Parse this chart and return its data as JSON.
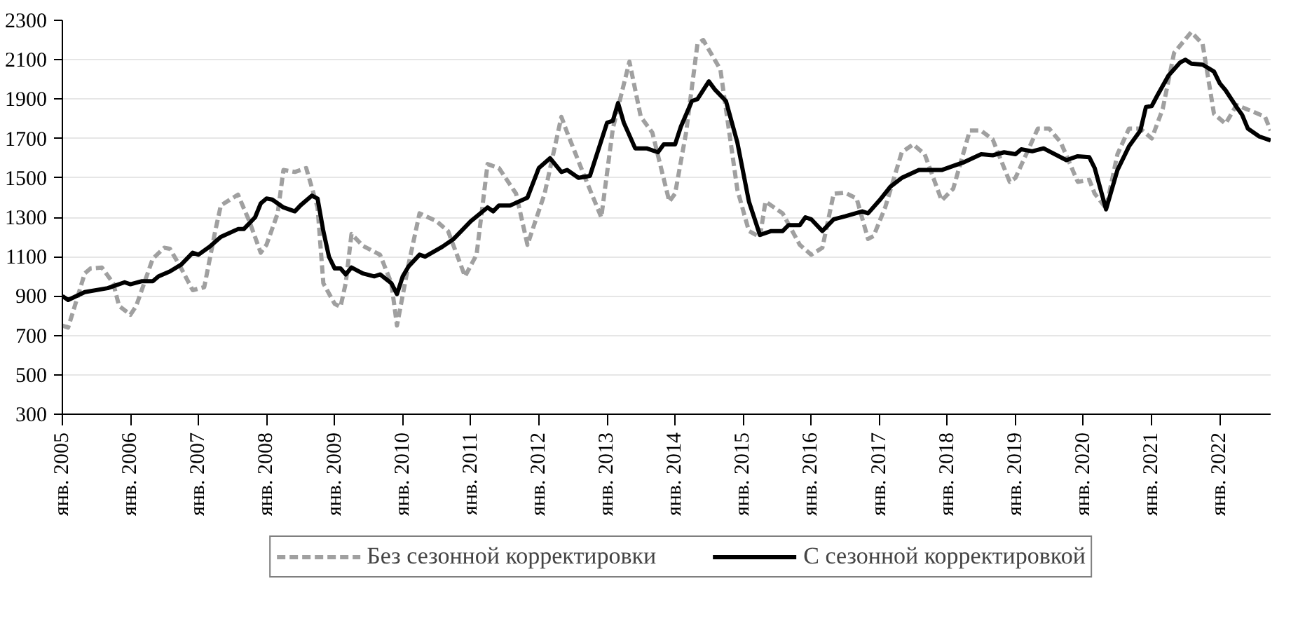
{
  "chart_data": {
    "type": "line",
    "xlim": [
      "2005-01",
      "2022-10"
    ],
    "xticks": [
      {
        "value": "2005-01",
        "label": "янв. 2005"
      },
      {
        "value": "2006-01",
        "label": "янв. 2006"
      },
      {
        "value": "2007-01",
        "label": "янв. 2007"
      },
      {
        "value": "2008-01",
        "label": "янв. 2008"
      },
      {
        "value": "2009-01",
        "label": "янв. 2009"
      },
      {
        "value": "2010-01",
        "label": "янв. 2010"
      },
      {
        "value": "2011-01",
        "label": "янв. 2011"
      },
      {
        "value": "2012-01",
        "label": "янв. 2012"
      },
      {
        "value": "2013-01",
        "label": "янв. 2013"
      },
      {
        "value": "2014-01",
        "label": "янв. 2014"
      },
      {
        "value": "2015-01",
        "label": "янв. 2015"
      },
      {
        "value": "2016-01",
        "label": "янв. 2016"
      },
      {
        "value": "2017-01",
        "label": "янв. 2017"
      },
      {
        "value": "2018-01",
        "label": "янв. 2018"
      },
      {
        "value": "2019-01",
        "label": "янв. 2019"
      },
      {
        "value": "2020-01",
        "label": "янв. 2020"
      },
      {
        "value": "2021-01",
        "label": "янв. 2021"
      },
      {
        "value": "2022-01",
        "label": "янв. 2022"
      }
    ],
    "ylim": [
      300,
      2300
    ],
    "yticks": [
      300,
      500,
      700,
      900,
      1100,
      1300,
      1500,
      1700,
      1900,
      2100,
      2300
    ],
    "grid": "y",
    "legend": "bottom",
    "series": [
      {
        "name": "Без сезонной корректировки",
        "color": "#a0a0a0",
        "line_style": "dashed",
        "x": [
          "2005-01",
          "2005-02",
          "2005-05",
          "2005-06",
          "2005-08",
          "2005-10",
          "2005-11",
          "2006-01",
          "2006-02",
          "2006-05",
          "2006-07",
          "2006-08",
          "2006-10",
          "2006-12",
          "2007-02",
          "2007-04",
          "2007-05",
          "2007-08",
          "2007-10",
          "2007-12",
          "2008-01",
          "2008-03",
          "2008-04",
          "2008-06",
          "2008-08",
          "2008-10",
          "2008-11",
          "2009-01",
          "2009-02",
          "2009-03",
          "2009-04",
          "2009-06",
          "2009-09",
          "2009-11",
          "2009-12",
          "2010-02",
          "2010-04",
          "2010-07",
          "2010-09",
          "2010-12",
          "2011-02",
          "2011-04",
          "2011-06",
          "2011-09",
          "2011-11",
          "2012-02",
          "2012-05",
          "2012-06",
          "2012-09",
          "2012-12",
          "2013-02",
          "2013-05",
          "2013-07",
          "2013-09",
          "2013-12",
          "2014-01",
          "2014-03",
          "2014-05",
          "2014-06",
          "2014-09",
          "2014-12",
          "2015-02",
          "2015-04",
          "2015-05",
          "2015-07",
          "2015-08",
          "2015-11",
          "2016-01",
          "2016-03",
          "2016-05",
          "2016-07",
          "2016-09",
          "2016-11",
          "2016-12",
          "2017-02",
          "2017-05",
          "2017-07",
          "2017-09",
          "2017-12",
          "2018-02",
          "2018-05",
          "2018-07",
          "2018-09",
          "2018-12",
          "2019-01",
          "2019-05",
          "2019-07",
          "2019-09",
          "2019-12",
          "2020-02",
          "2020-03",
          "2020-05",
          "2020-07",
          "2020-09",
          "2020-11",
          "2021-01",
          "2021-03",
          "2021-05",
          "2021-08",
          "2021-10",
          "2021-12",
          "2022-02",
          "2022-04",
          "2022-07",
          "2022-09",
          "2022-10"
        ],
        "values": [
          750,
          740,
          1015,
          1040,
          1045,
          965,
          850,
          805,
          850,
          1090,
          1145,
          1140,
          1040,
          930,
          945,
          1230,
          1360,
          1415,
          1280,
          1120,
          1160,
          1320,
          1540,
          1530,
          1550,
          1350,
          965,
          860,
          845,
          965,
          1215,
          1155,
          1110,
          965,
          750,
          1060,
          1320,
          1280,
          1230,
          1000,
          1110,
          1570,
          1550,
          1420,
          1160,
          1420,
          1810,
          1730,
          1510,
          1300,
          1750,
          2090,
          1810,
          1730,
          1380,
          1420,
          1730,
          2180,
          2200,
          2050,
          1440,
          1230,
          1200,
          1380,
          1340,
          1320,
          1160,
          1110,
          1145,
          1420,
          1425,
          1395,
          1190,
          1205,
          1350,
          1630,
          1670,
          1620,
          1385,
          1445,
          1740,
          1740,
          1695,
          1480,
          1500,
          1750,
          1750,
          1680,
          1480,
          1490,
          1420,
          1345,
          1620,
          1750,
          1750,
          1700,
          1850,
          2135,
          2240,
          2180,
          1825,
          1775,
          1870,
          1835,
          1810,
          1740
        ]
      },
      {
        "name": "С сезонной корректировкой",
        "color": "#000000",
        "line_style": "solid",
        "x": [
          "2005-01",
          "2005-02",
          "2005-05",
          "2005-09",
          "2005-12",
          "2006-01",
          "2006-03",
          "2006-05",
          "2006-06",
          "2006-08",
          "2006-10",
          "2006-12",
          "2007-01",
          "2007-03",
          "2007-05",
          "2007-08",
          "2007-09",
          "2007-11",
          "2007-12",
          "2008-01",
          "2008-02",
          "2008-04",
          "2008-06",
          "2008-07",
          "2008-09",
          "2008-10",
          "2008-11",
          "2008-12",
          "2009-01",
          "2009-02",
          "2009-03",
          "2009-04",
          "2009-06",
          "2009-08",
          "2009-09",
          "2009-11",
          "2009-12",
          "2010-01",
          "2010-02",
          "2010-04",
          "2010-05",
          "2010-08",
          "2010-10",
          "2011-01",
          "2011-04",
          "2011-05",
          "2011-06",
          "2011-08",
          "2011-11",
          "2012-01",
          "2012-03",
          "2012-05",
          "2012-06",
          "2012-08",
          "2012-10",
          "2013-01",
          "2013-02",
          "2013-03",
          "2013-04",
          "2013-06",
          "2013-08",
          "2013-10",
          "2013-11",
          "2014-01",
          "2014-02",
          "2014-04",
          "2014-05",
          "2014-07",
          "2014-08",
          "2014-10",
          "2014-12",
          "2015-02",
          "2015-04",
          "2015-06",
          "2015-08",
          "2015-09",
          "2015-11",
          "2015-12",
          "2016-01",
          "2016-03",
          "2016-05",
          "2016-07",
          "2016-10",
          "2016-11",
          "2017-01",
          "2017-03",
          "2017-05",
          "2017-08",
          "2017-10",
          "2017-12",
          "2018-03",
          "2018-04",
          "2018-07",
          "2018-09",
          "2018-11",
          "2019-01",
          "2019-02",
          "2019-04",
          "2019-06",
          "2019-07",
          "2019-10",
          "2019-12",
          "2020-02",
          "2020-03",
          "2020-05",
          "2020-07",
          "2020-09",
          "2020-11",
          "2020-12",
          "2021-01",
          "2021-02",
          "2021-04",
          "2021-06",
          "2021-07",
          "2021-08",
          "2021-10",
          "2021-12",
          "2022-01",
          "2022-02",
          "2022-04",
          "2022-05",
          "2022-06",
          "2022-08",
          "2022-10"
        ],
        "values": [
          900,
          880,
          920,
          940,
          970,
          960,
          975,
          975,
          1000,
          1025,
          1060,
          1120,
          1110,
          1150,
          1200,
          1240,
          1240,
          1300,
          1370,
          1395,
          1390,
          1350,
          1330,
          1360,
          1410,
          1395,
          1230,
          1100,
          1040,
          1040,
          1010,
          1045,
          1015,
          1000,
          1010,
          965,
          910,
          1000,
          1050,
          1110,
          1100,
          1150,
          1190,
          1280,
          1350,
          1330,
          1360,
          1360,
          1400,
          1550,
          1600,
          1530,
          1540,
          1500,
          1510,
          1780,
          1790,
          1880,
          1780,
          1650,
          1650,
          1630,
          1670,
          1670,
          1760,
          1890,
          1900,
          1990,
          1950,
          1890,
          1680,
          1380,
          1210,
          1230,
          1230,
          1260,
          1260,
          1300,
          1290,
          1230,
          1290,
          1305,
          1330,
          1320,
          1385,
          1455,
          1500,
          1540,
          1540,
          1540,
          1570,
          1580,
          1620,
          1615,
          1630,
          1620,
          1645,
          1635,
          1650,
          1635,
          1590,
          1610,
          1605,
          1550,
          1340,
          1540,
          1660,
          1740,
          1860,
          1865,
          1920,
          2020,
          2085,
          2100,
          2080,
          2075,
          2040,
          1980,
          1945,
          1860,
          1820,
          1750,
          1710,
          1690
        ]
      }
    ]
  }
}
